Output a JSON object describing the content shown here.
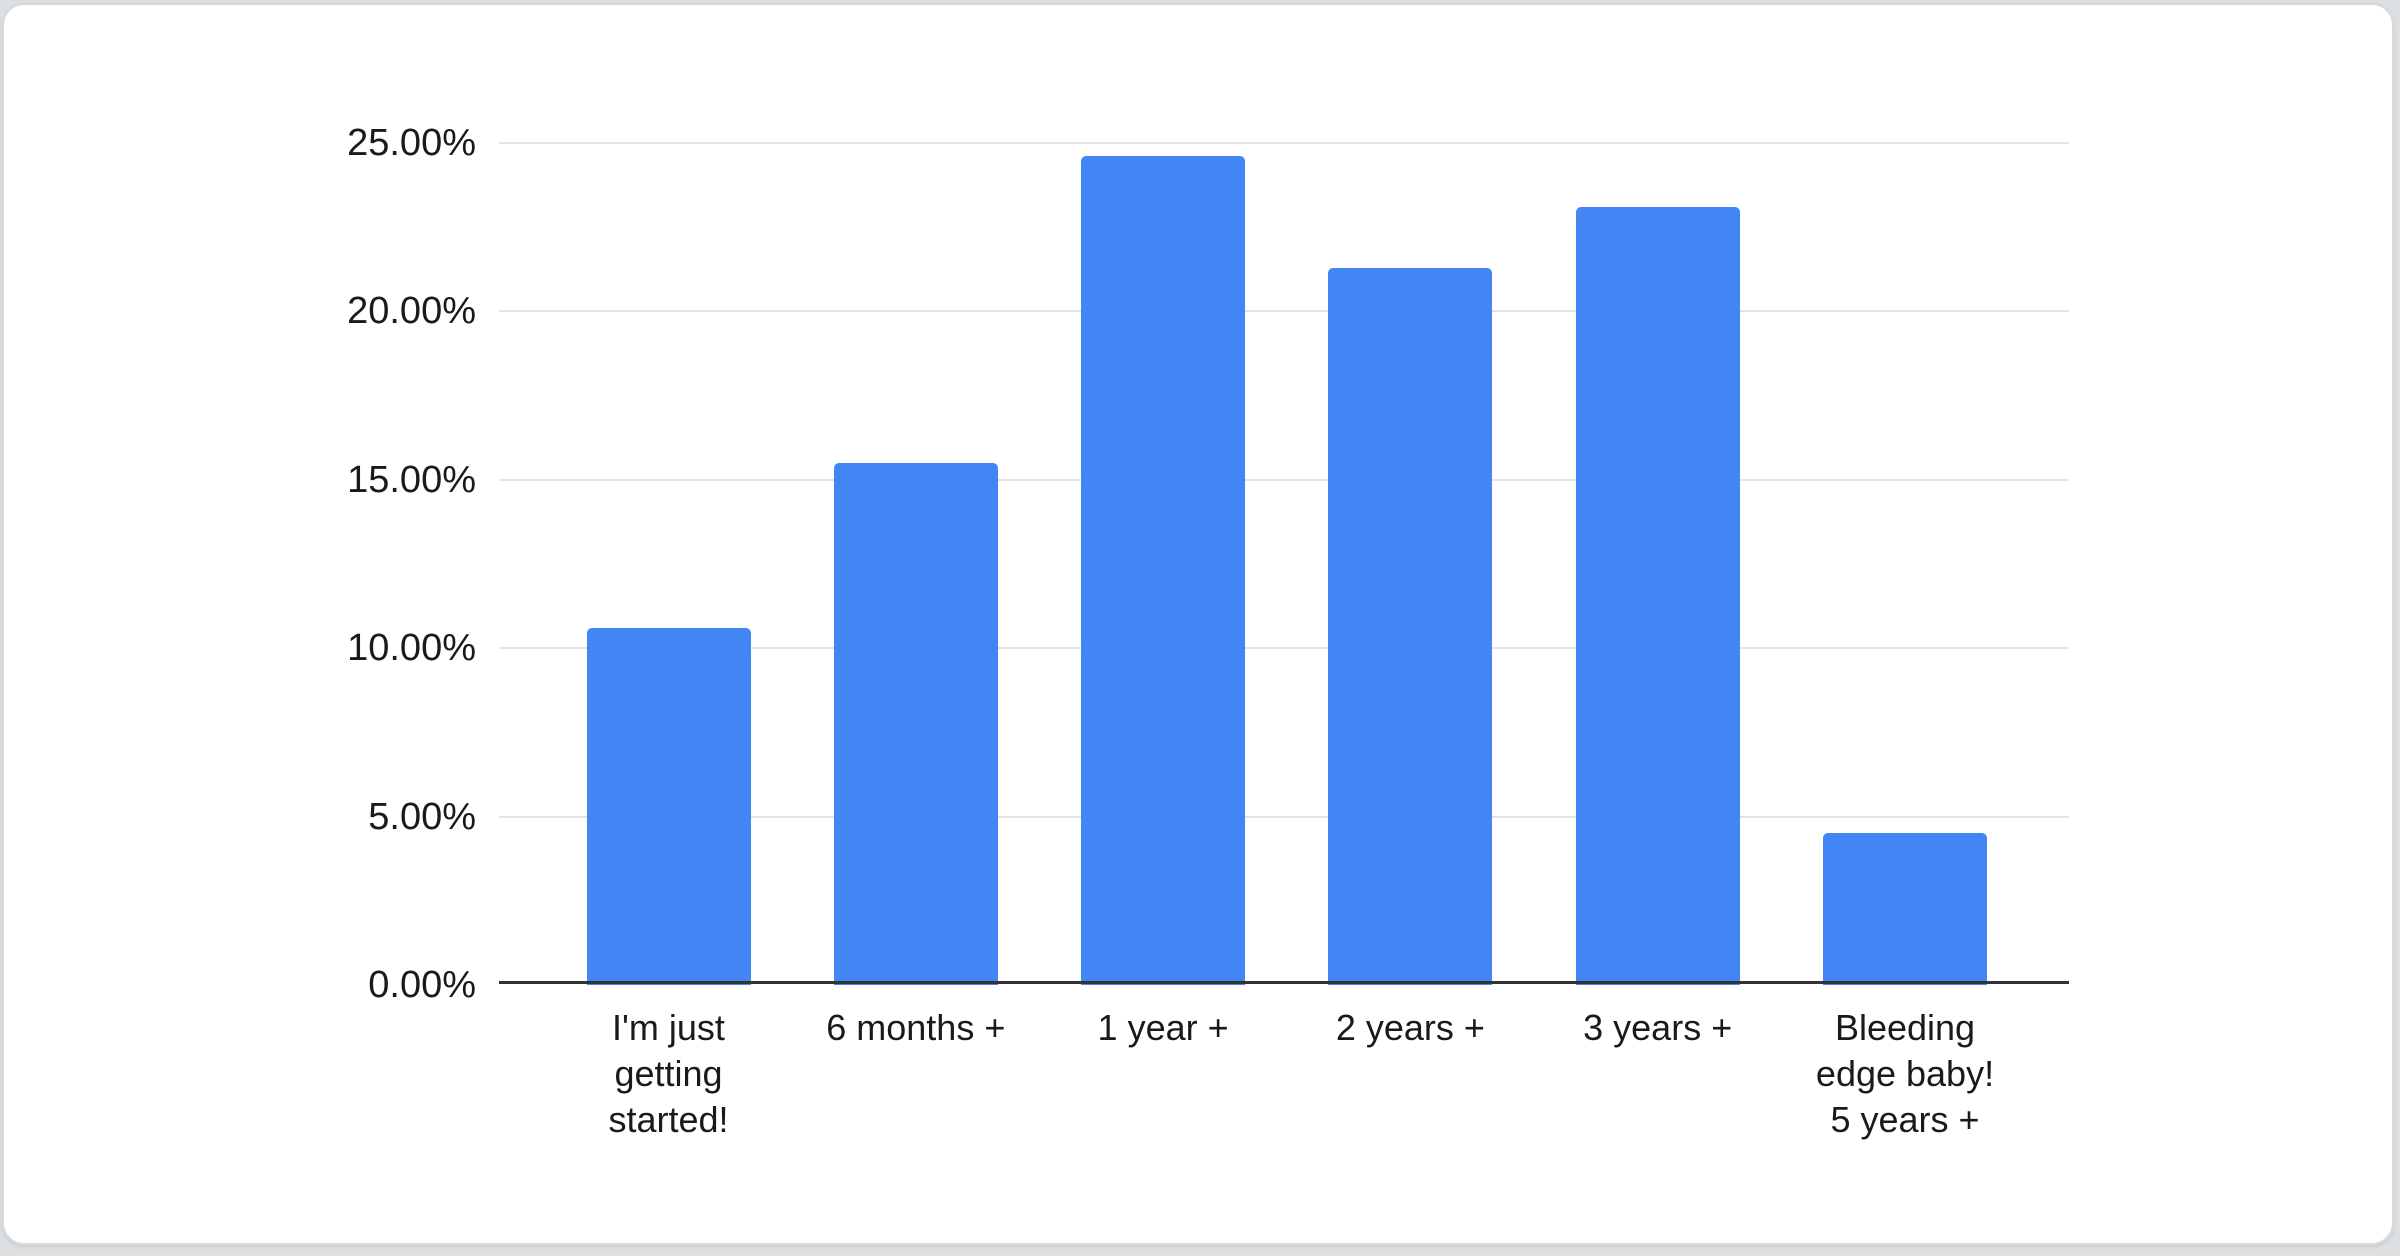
{
  "page": {
    "background_color": "#dce0e3",
    "card_background_color": "#ffffff",
    "card_border_color": "#d7dbde"
  },
  "chart_data": {
    "type": "bar",
    "title": "",
    "categories": [
      "I'm just\ngetting\nstarted!",
      "6 months +",
      "1 year +",
      "2 years +",
      "3 years +",
      "Bleeding\nedge baby!\n5 years +"
    ],
    "values": [
      10.6,
      15.5,
      24.6,
      21.3,
      23.1,
      4.5
    ],
    "unit": "%",
    "xlabel": "",
    "ylabel": "",
    "ylim": [
      0,
      25
    ],
    "y_ticks": [
      {
        "value": 0,
        "label": "0.00%"
      },
      {
        "value": 5,
        "label": "5.00%"
      },
      {
        "value": 10,
        "label": "10.00%"
      },
      {
        "value": 15,
        "label": "15.00%"
      },
      {
        "value": 20,
        "label": "20.00%"
      },
      {
        "value": 25,
        "label": "25.00%"
      }
    ],
    "grid": true,
    "legend": "none",
    "colors": {
      "bar": "#4285f4",
      "axis_line": "#333333",
      "gridline": "#e3e3e3",
      "tick_label": "#1a1a1a"
    }
  }
}
